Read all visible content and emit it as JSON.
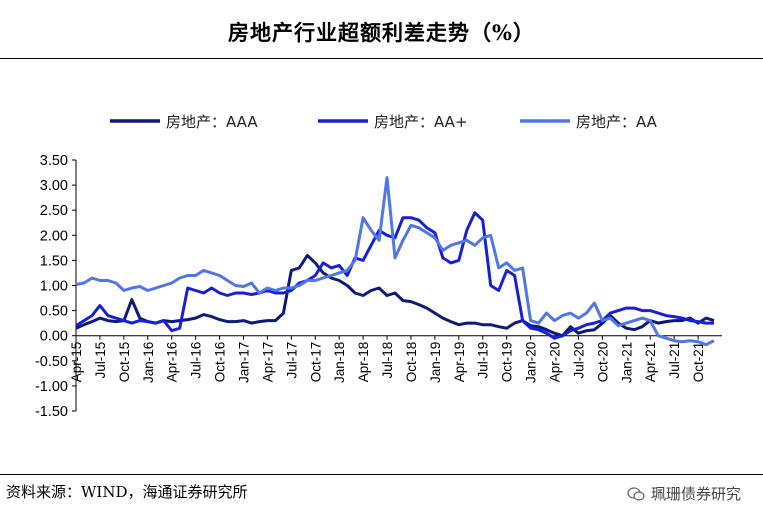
{
  "chart_data": {
    "type": "line",
    "title": "房地产行业超额利差走势（%）",
    "xlabel": "",
    "ylabel": "",
    "ylim": [
      -1.5,
      3.5
    ],
    "yticks": [
      "3.50",
      "3.00",
      "2.50",
      "2.00",
      "1.50",
      "1.00",
      "0.50",
      "0.00",
      "-0.50",
      "-1.00",
      "-1.50"
    ],
    "x_tick_labels": [
      "Apr-15",
      "Jul-15",
      "Oct-15",
      "Jan-16",
      "Apr-16",
      "Jul-16",
      "Oct-16",
      "Jan-17",
      "Apr-17",
      "Jul-17",
      "Oct-17",
      "Jan-18",
      "Apr-18",
      "Jul-18",
      "Oct-18",
      "Jan-19",
      "Apr-19",
      "Jul-19",
      "Oct-19",
      "Jan-20",
      "Apr-20",
      "Jul-20",
      "Oct-20",
      "Jan-21",
      "Apr-21",
      "Jul-21",
      "Oct-21"
    ],
    "x_range_months": [
      0,
      81
    ],
    "legend_position": "top",
    "series": [
      {
        "name": "房地产：AAA",
        "color": "#0d1a7a",
        "points": [
          [
            0,
            0.15
          ],
          [
            1,
            0.22
          ],
          [
            2,
            0.28
          ],
          [
            3,
            0.35
          ],
          [
            4,
            0.3
          ],
          [
            5,
            0.28
          ],
          [
            6,
            0.3
          ],
          [
            7,
            0.72
          ],
          [
            8,
            0.35
          ],
          [
            9,
            0.28
          ],
          [
            10,
            0.25
          ],
          [
            11,
            0.3
          ],
          [
            12,
            0.28
          ],
          [
            13,
            0.3
          ],
          [
            14,
            0.32
          ],
          [
            15,
            0.35
          ],
          [
            16,
            0.42
          ],
          [
            17,
            0.38
          ],
          [
            18,
            0.32
          ],
          [
            19,
            0.28
          ],
          [
            20,
            0.28
          ],
          [
            21,
            0.3
          ],
          [
            22,
            0.25
          ],
          [
            23,
            0.28
          ],
          [
            24,
            0.3
          ],
          [
            25,
            0.3
          ],
          [
            26,
            0.45
          ],
          [
            27,
            1.3
          ],
          [
            28,
            1.35
          ],
          [
            29,
            1.6
          ],
          [
            30,
            1.45
          ],
          [
            31,
            1.25
          ],
          [
            32,
            1.15
          ],
          [
            33,
            1.1
          ],
          [
            34,
            1.0
          ],
          [
            35,
            0.85
          ],
          [
            36,
            0.8
          ],
          [
            37,
            0.9
          ],
          [
            38,
            0.95
          ],
          [
            39,
            0.8
          ],
          [
            40,
            0.85
          ],
          [
            41,
            0.7
          ],
          [
            42,
            0.68
          ],
          [
            43,
            0.62
          ],
          [
            44,
            0.55
          ],
          [
            45,
            0.45
          ],
          [
            46,
            0.35
          ],
          [
            47,
            0.28
          ],
          [
            48,
            0.22
          ],
          [
            49,
            0.25
          ],
          [
            50,
            0.25
          ],
          [
            51,
            0.22
          ],
          [
            52,
            0.22
          ],
          [
            53,
            0.18
          ],
          [
            54,
            0.15
          ],
          [
            55,
            0.25
          ],
          [
            56,
            0.3
          ],
          [
            57,
            0.2
          ],
          [
            58,
            0.18
          ],
          [
            59,
            0.12
          ],
          [
            60,
            0.05
          ],
          [
            61,
            0.0
          ],
          [
            62,
            0.18
          ],
          [
            63,
            0.05
          ],
          [
            64,
            0.1
          ],
          [
            65,
            0.12
          ],
          [
            66,
            0.25
          ],
          [
            67,
            0.4
          ],
          [
            68,
            0.25
          ],
          [
            69,
            0.15
          ],
          [
            70,
            0.12
          ],
          [
            71,
            0.18
          ],
          [
            72,
            0.3
          ],
          [
            73,
            0.25
          ],
          [
            74,
            0.28
          ],
          [
            75,
            0.3
          ],
          [
            76,
            0.3
          ],
          [
            77,
            0.35
          ],
          [
            78,
            0.25
          ],
          [
            79,
            0.35
          ],
          [
            80,
            0.3
          ]
        ]
      },
      {
        "name": "房地产：AA+",
        "color": "#1720d6",
        "points": [
          [
            0,
            0.2
          ],
          [
            1,
            0.3
          ],
          [
            2,
            0.4
          ],
          [
            3,
            0.6
          ],
          [
            4,
            0.4
          ],
          [
            5,
            0.35
          ],
          [
            6,
            0.3
          ],
          [
            7,
            0.25
          ],
          [
            8,
            0.3
          ],
          [
            9,
            0.28
          ],
          [
            10,
            0.25
          ],
          [
            11,
            0.3
          ],
          [
            12,
            0.1
          ],
          [
            13,
            0.15
          ],
          [
            14,
            0.95
          ],
          [
            15,
            0.9
          ],
          [
            16,
            0.85
          ],
          [
            17,
            0.95
          ],
          [
            18,
            0.85
          ],
          [
            19,
            0.8
          ],
          [
            20,
            0.85
          ],
          [
            21,
            0.85
          ],
          [
            22,
            0.82
          ],
          [
            23,
            0.85
          ],
          [
            24,
            0.9
          ],
          [
            25,
            0.85
          ],
          [
            26,
            0.85
          ],
          [
            27,
            0.9
          ],
          [
            28,
            1.05
          ],
          [
            29,
            1.1
          ],
          [
            30,
            1.2
          ],
          [
            31,
            1.45
          ],
          [
            32,
            1.35
          ],
          [
            33,
            1.4
          ],
          [
            34,
            1.2
          ],
          [
            35,
            1.55
          ],
          [
            36,
            1.5
          ],
          [
            37,
            1.8
          ],
          [
            38,
            2.1
          ],
          [
            39,
            2.0
          ],
          [
            40,
            1.95
          ],
          [
            41,
            2.35
          ],
          [
            42,
            2.35
          ],
          [
            43,
            2.3
          ],
          [
            44,
            2.15
          ],
          [
            45,
            2.05
          ],
          [
            46,
            1.55
          ],
          [
            47,
            1.45
          ],
          [
            48,
            1.5
          ],
          [
            49,
            2.1
          ],
          [
            50,
            2.45
          ],
          [
            51,
            2.3
          ],
          [
            52,
            1.0
          ],
          [
            53,
            0.9
          ],
          [
            54,
            1.3
          ],
          [
            55,
            1.2
          ],
          [
            56,
            0.3
          ],
          [
            57,
            0.15
          ],
          [
            58,
            0.12
          ],
          [
            59,
            0.05
          ],
          [
            60,
            -0.05
          ],
          [
            61,
            0.0
          ],
          [
            62,
            0.1
          ],
          [
            63,
            0.15
          ],
          [
            64,
            0.22
          ],
          [
            65,
            0.25
          ],
          [
            66,
            0.3
          ],
          [
            67,
            0.45
          ],
          [
            68,
            0.5
          ],
          [
            69,
            0.55
          ],
          [
            70,
            0.55
          ],
          [
            71,
            0.5
          ],
          [
            72,
            0.5
          ],
          [
            73,
            0.45
          ],
          [
            74,
            0.4
          ],
          [
            75,
            0.38
          ],
          [
            76,
            0.35
          ],
          [
            77,
            0.3
          ],
          [
            78,
            0.28
          ],
          [
            79,
            0.25
          ],
          [
            80,
            0.25
          ]
        ]
      },
      {
        "name": "房地产：AA",
        "color": "#4f77e6",
        "points": [
          [
            0,
            1.02
          ],
          [
            1,
            1.05
          ],
          [
            2,
            1.15
          ],
          [
            3,
            1.1
          ],
          [
            4,
            1.1
          ],
          [
            5,
            1.05
          ],
          [
            6,
            0.9
          ],
          [
            7,
            0.95
          ],
          [
            8,
            0.98
          ],
          [
            9,
            0.9
          ],
          [
            10,
            0.95
          ],
          [
            11,
            1.0
          ],
          [
            12,
            1.05
          ],
          [
            13,
            1.15
          ],
          [
            14,
            1.2
          ],
          [
            15,
            1.2
          ],
          [
            16,
            1.3
          ],
          [
            17,
            1.25
          ],
          [
            18,
            1.2
          ],
          [
            19,
            1.1
          ],
          [
            20,
            1.0
          ],
          [
            21,
            0.98
          ],
          [
            22,
            1.05
          ],
          [
            23,
            0.85
          ],
          [
            24,
            0.95
          ],
          [
            25,
            0.9
          ],
          [
            26,
            0.95
          ],
          [
            27,
            0.95
          ],
          [
            28,
            1.0
          ],
          [
            29,
            1.1
          ],
          [
            30,
            1.1
          ],
          [
            31,
            1.15
          ],
          [
            32,
            1.2
          ],
          [
            33,
            1.25
          ],
          [
            34,
            1.3
          ],
          [
            35,
            1.5
          ],
          [
            36,
            2.35
          ],
          [
            37,
            2.1
          ],
          [
            38,
            1.9
          ],
          [
            39,
            3.15
          ],
          [
            40,
            1.55
          ],
          [
            41,
            1.9
          ],
          [
            42,
            2.2
          ],
          [
            43,
            2.15
          ],
          [
            44,
            2.05
          ],
          [
            45,
            1.95
          ],
          [
            46,
            1.7
          ],
          [
            47,
            1.8
          ],
          [
            48,
            1.85
          ],
          [
            49,
            1.9
          ],
          [
            50,
            1.8
          ],
          [
            51,
            1.95
          ],
          [
            52,
            2.0
          ],
          [
            53,
            1.35
          ],
          [
            54,
            1.45
          ],
          [
            55,
            1.3
          ],
          [
            56,
            1.35
          ],
          [
            57,
            0.3
          ],
          [
            58,
            0.25
          ],
          [
            59,
            0.45
          ],
          [
            60,
            0.3
          ],
          [
            61,
            0.4
          ],
          [
            62,
            0.45
          ],
          [
            63,
            0.35
          ],
          [
            64,
            0.45
          ],
          [
            65,
            0.65
          ],
          [
            66,
            0.3
          ],
          [
            67,
            0.35
          ],
          [
            68,
            0.2
          ],
          [
            69,
            0.25
          ],
          [
            70,
            0.3
          ],
          [
            71,
            0.35
          ],
          [
            72,
            0.3
          ],
          [
            73,
            0.0
          ],
          [
            74,
            -0.05
          ],
          [
            75,
            -0.1
          ],
          [
            76,
            -0.12
          ],
          [
            77,
            -0.1
          ],
          [
            78,
            -0.12
          ],
          [
            79,
            -0.18
          ],
          [
            80,
            -0.1
          ]
        ]
      }
    ]
  },
  "source_text": "资料来源：WIND，海通证券研究所",
  "watermark_text": "珮珊债券研究"
}
